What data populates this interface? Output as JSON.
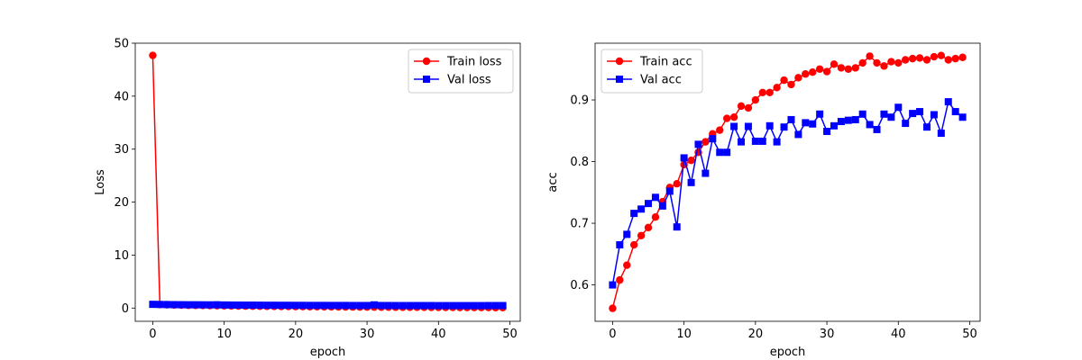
{
  "chart_data": [
    {
      "type": "line",
      "xlabel": "epoch",
      "ylabel": "Loss",
      "xlim": [
        -2.45,
        51.45
      ],
      "ylim": [
        -2.5,
        50
      ],
      "xticks": [
        0,
        10,
        20,
        30,
        40,
        50
      ],
      "yticks": [
        0,
        10,
        20,
        30,
        40,
        50
      ],
      "grid": false,
      "legend_position": "top-right",
      "x": [
        0,
        1,
        2,
        3,
        4,
        5,
        6,
        7,
        8,
        9,
        10,
        11,
        12,
        13,
        14,
        15,
        16,
        17,
        18,
        19,
        20,
        21,
        22,
        23,
        24,
        25,
        26,
        27,
        28,
        29,
        30,
        31,
        32,
        33,
        34,
        35,
        36,
        37,
        38,
        39,
        40,
        41,
        42,
        43,
        44,
        45,
        46,
        47,
        48,
        49
      ],
      "series": [
        {
          "name": "Train loss",
          "color": "#ff0000",
          "marker": "circle",
          "values": [
            47.7,
            0.66,
            0.62,
            0.58,
            0.55,
            0.52,
            0.5,
            0.48,
            0.46,
            0.44,
            0.42,
            0.4,
            0.38,
            0.37,
            0.35,
            0.34,
            0.33,
            0.31,
            0.3,
            0.29,
            0.28,
            0.27,
            0.26,
            0.25,
            0.24,
            0.23,
            0.22,
            0.21,
            0.2,
            0.19,
            0.19,
            0.18,
            0.17,
            0.17,
            0.16,
            0.15,
            0.15,
            0.14,
            0.14,
            0.13,
            0.13,
            0.12,
            0.12,
            0.11,
            0.11,
            0.1,
            0.1,
            0.1,
            0.09,
            0.09
          ]
        },
        {
          "name": "Val loss",
          "color": "#0000ff",
          "marker": "square",
          "values": [
            0.7,
            0.68,
            0.66,
            0.64,
            0.63,
            0.62,
            0.62,
            0.61,
            0.6,
            0.62,
            0.58,
            0.57,
            0.56,
            0.55,
            0.55,
            0.54,
            0.53,
            0.53,
            0.52,
            0.52,
            0.51,
            0.51,
            0.5,
            0.5,
            0.5,
            0.49,
            0.49,
            0.49,
            0.48,
            0.48,
            0.48,
            0.6,
            0.48,
            0.48,
            0.47,
            0.47,
            0.47,
            0.47,
            0.47,
            0.47,
            0.46,
            0.46,
            0.46,
            0.46,
            0.46,
            0.46,
            0.46,
            0.47,
            0.47,
            0.47
          ]
        }
      ]
    },
    {
      "type": "line",
      "xlabel": "epoch",
      "ylabel": "acc",
      "xlim": [
        -2.45,
        51.45
      ],
      "ylim": [
        0.541,
        0.992
      ],
      "xticks": [
        0,
        10,
        20,
        30,
        40,
        50
      ],
      "yticks": [
        0.6,
        0.7,
        0.8,
        0.9
      ],
      "grid": false,
      "legend_position": "top-left",
      "x": [
        0,
        1,
        2,
        3,
        4,
        5,
        6,
        7,
        8,
        9,
        10,
        11,
        12,
        13,
        14,
        15,
        16,
        17,
        18,
        19,
        20,
        21,
        22,
        23,
        24,
        25,
        26,
        27,
        28,
        29,
        30,
        31,
        32,
        33,
        34,
        35,
        36,
        37,
        38,
        39,
        40,
        41,
        42,
        43,
        44,
        45,
        46,
        47,
        48,
        49
      ],
      "series": [
        {
          "name": "Train acc",
          "color": "#ff0000",
          "marker": "circle",
          "values": [
            0.562,
            0.608,
            0.632,
            0.665,
            0.68,
            0.693,
            0.71,
            0.735,
            0.758,
            0.764,
            0.795,
            0.802,
            0.815,
            0.832,
            0.845,
            0.851,
            0.87,
            0.872,
            0.89,
            0.887,
            0.9,
            0.912,
            0.912,
            0.92,
            0.932,
            0.925,
            0.936,
            0.942,
            0.945,
            0.95,
            0.946,
            0.958,
            0.952,
            0.95,
            0.952,
            0.96,
            0.971,
            0.96,
            0.955,
            0.962,
            0.96,
            0.965,
            0.967,
            0.968,
            0.965,
            0.97,
            0.972,
            0.965,
            0.967,
            0.969
          ]
        },
        {
          "name": "Val acc",
          "color": "#0000ff",
          "marker": "square",
          "values": [
            0.6,
            0.665,
            0.682,
            0.716,
            0.723,
            0.732,
            0.742,
            0.728,
            0.752,
            0.694,
            0.806,
            0.766,
            0.828,
            0.781,
            0.837,
            0.815,
            0.815,
            0.857,
            0.832,
            0.857,
            0.833,
            0.833,
            0.858,
            0.832,
            0.856,
            0.868,
            0.844,
            0.863,
            0.861,
            0.877,
            0.849,
            0.858,
            0.865,
            0.867,
            0.868,
            0.877,
            0.86,
            0.852,
            0.877,
            0.872,
            0.888,
            0.862,
            0.878,
            0.881,
            0.856,
            0.876,
            0.846,
            0.897,
            0.881,
            0.872
          ]
        }
      ]
    }
  ]
}
